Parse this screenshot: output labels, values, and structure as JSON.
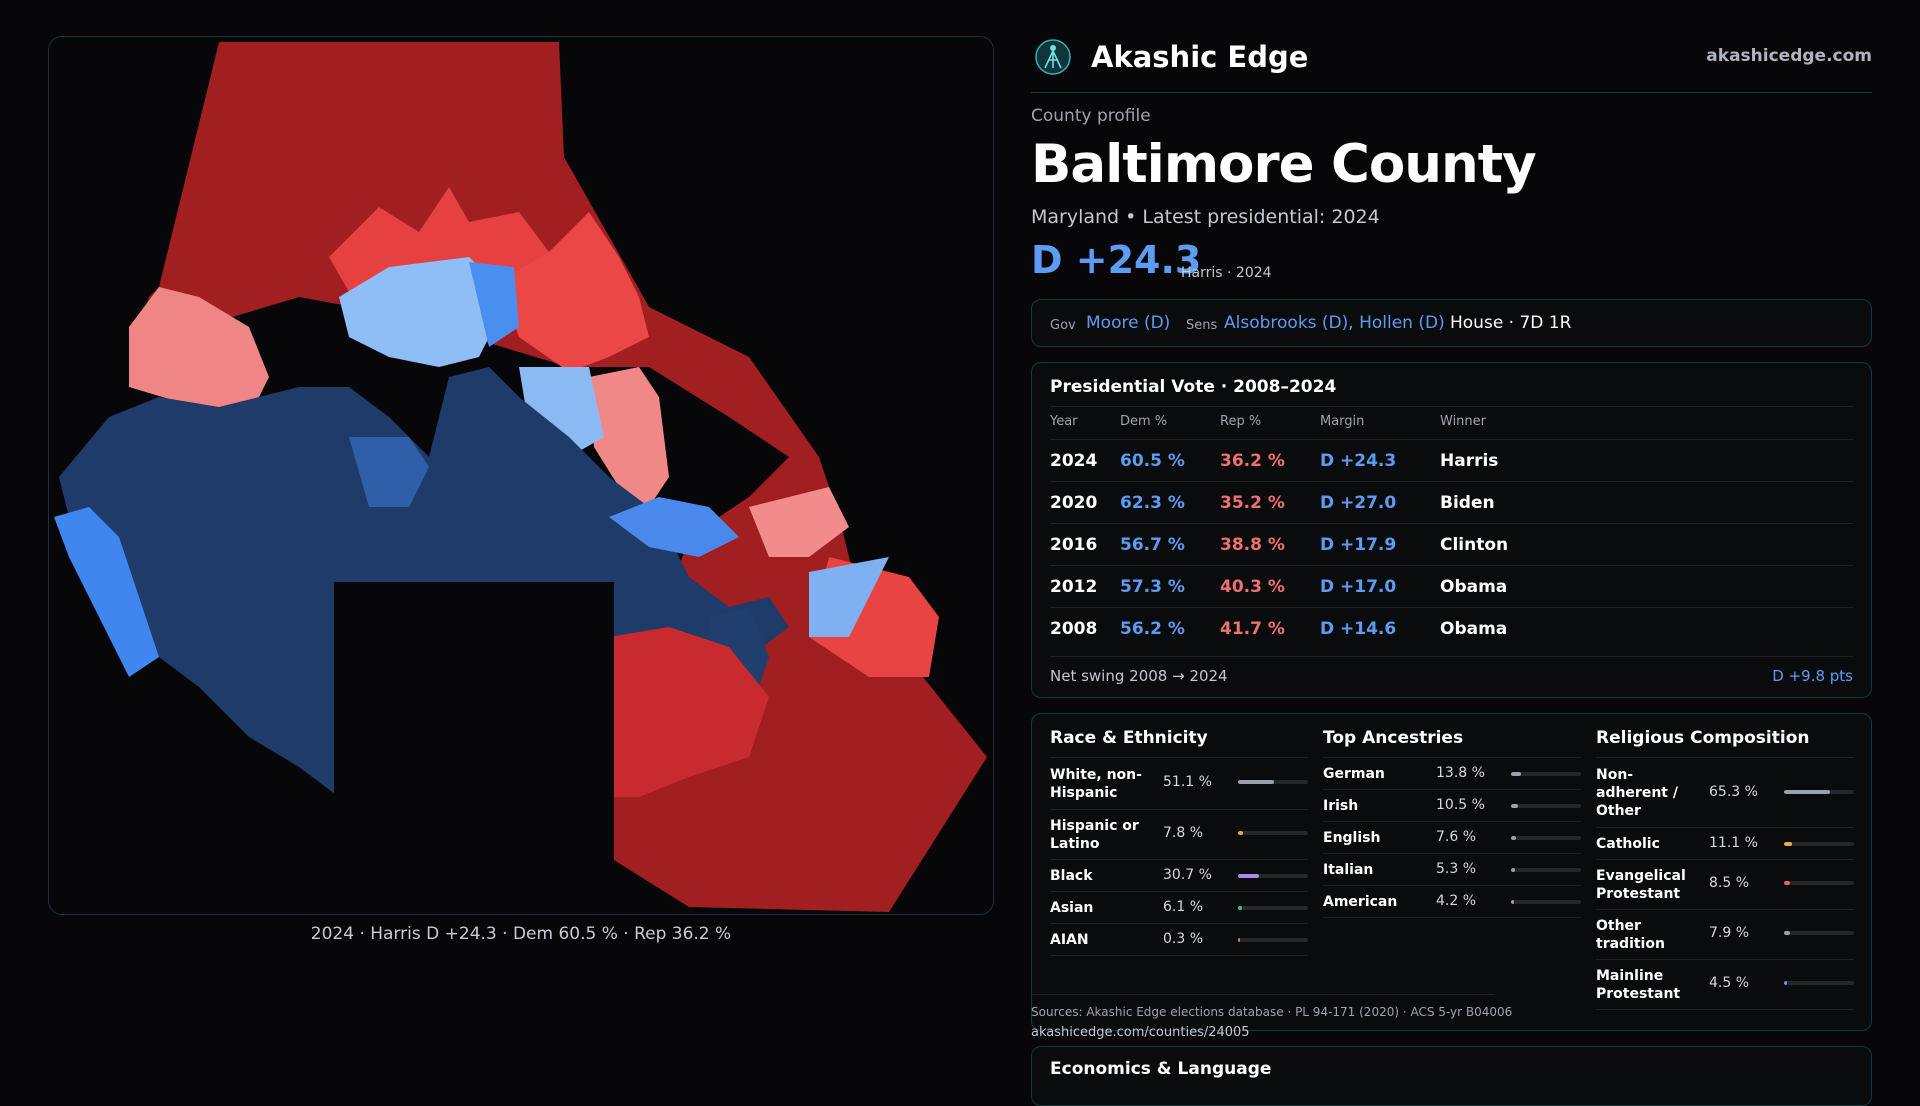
{
  "brand": {
    "name": "Akashic Edge",
    "url": "akashicedge.com"
  },
  "profile": {
    "kicker": "County profile",
    "county": "Baltimore County",
    "subline": "Maryland • Latest presidential: 2024",
    "margin": "D +24.3",
    "margin_sub": "Harris · 2024"
  },
  "offices": {
    "gov_label": "Gov",
    "gov": "Moore (D)",
    "sens_label": "Sens",
    "sens": "Alsobrooks (D), Hollen (D)",
    "house": "House · 7D 1R"
  },
  "vote": {
    "title": "Presidential Vote · 2008–2024",
    "headers": [
      "Year",
      "Dem %",
      "Rep %",
      "Margin",
      "Winner"
    ],
    "rows": [
      {
        "year": "2024",
        "dem": "60.5 %",
        "rep": "36.2 %",
        "margin": "D +24.3",
        "winner": "Harris"
      },
      {
        "year": "2020",
        "dem": "62.3 %",
        "rep": "35.2 %",
        "margin": "D +27.0",
        "winner": "Biden"
      },
      {
        "year": "2016",
        "dem": "56.7 %",
        "rep": "38.8 %",
        "margin": "D +17.9",
        "winner": "Clinton"
      },
      {
        "year": "2012",
        "dem": "57.3 %",
        "rep": "40.3 %",
        "margin": "D +17.0",
        "winner": "Obama"
      },
      {
        "year": "2008",
        "dem": "56.2 %",
        "rep": "41.7 %",
        "margin": "D +14.6",
        "winner": "Obama"
      }
    ],
    "net_label": "Net swing 2008 → 2024",
    "net_value": "D +9.8 pts"
  },
  "race": {
    "title": "Race & Ethnicity",
    "items": [
      {
        "label": "White, non-Hispanic",
        "pct": "51.1 %",
        "value": 0.511,
        "color": "#9aa0ac"
      },
      {
        "label": "Hispanic or Latino",
        "pct": "7.8 %",
        "value": 0.078,
        "color": "#e3b23c"
      },
      {
        "label": "Black",
        "pct": "30.7 %",
        "value": 0.307,
        "color": "#a98be8"
      },
      {
        "label": "Asian",
        "pct": "6.1 %",
        "value": 0.061,
        "color": "#3cc48a"
      },
      {
        "label": "AIAN",
        "pct": "0.3 %",
        "value": 0.003,
        "color": "#e07a4f"
      }
    ]
  },
  "ancestry": {
    "title": "Top Ancestries",
    "items": [
      {
        "label": "German",
        "pct": "13.8 %",
        "value": 0.138,
        "color": "#9aa0ac"
      },
      {
        "label": "Irish",
        "pct": "10.5 %",
        "value": 0.105,
        "color": "#9aa0ac"
      },
      {
        "label": "English",
        "pct": "7.6 %",
        "value": 0.076,
        "color": "#9aa0ac"
      },
      {
        "label": "Italian",
        "pct": "5.3 %",
        "value": 0.053,
        "color": "#9aa0ac"
      },
      {
        "label": "American",
        "pct": "4.2 %",
        "value": 0.042,
        "color": "#9aa0ac"
      }
    ]
  },
  "religion": {
    "title": "Religious Composition",
    "items": [
      {
        "label": "Non-adherent / Other",
        "pct": "65.3 %",
        "value": 0.653,
        "color": "#9aa0ac"
      },
      {
        "label": "Catholic",
        "pct": "11.1 %",
        "value": 0.111,
        "color": "#e3b23c"
      },
      {
        "label": "Evangelical Protestant",
        "pct": "8.5 %",
        "value": 0.085,
        "color": "#e8606a"
      },
      {
        "label": "Other tradition",
        "pct": "7.9 %",
        "value": 0.079,
        "color": "#9aa0ac"
      },
      {
        "label": "Mainline Protestant",
        "pct": "4.5 %",
        "value": 0.045,
        "color": "#5c9df3"
      }
    ]
  },
  "map": {
    "caption": "2024 · Harris D +24.3 · Dem 60.5 % · Rep 36.2 %"
  },
  "sources": {
    "line": "Sources: Akashic Edge elections database · PL 94-171 (2020) · ACS 5-yr B04006",
    "url": "akashicedge.com/counties/24005"
  },
  "econ": {
    "title": "Economics & Language"
  },
  "colors": {
    "dem": "#5c9df3",
    "rep": "#f07070",
    "accent": "#5c9df3"
  }
}
